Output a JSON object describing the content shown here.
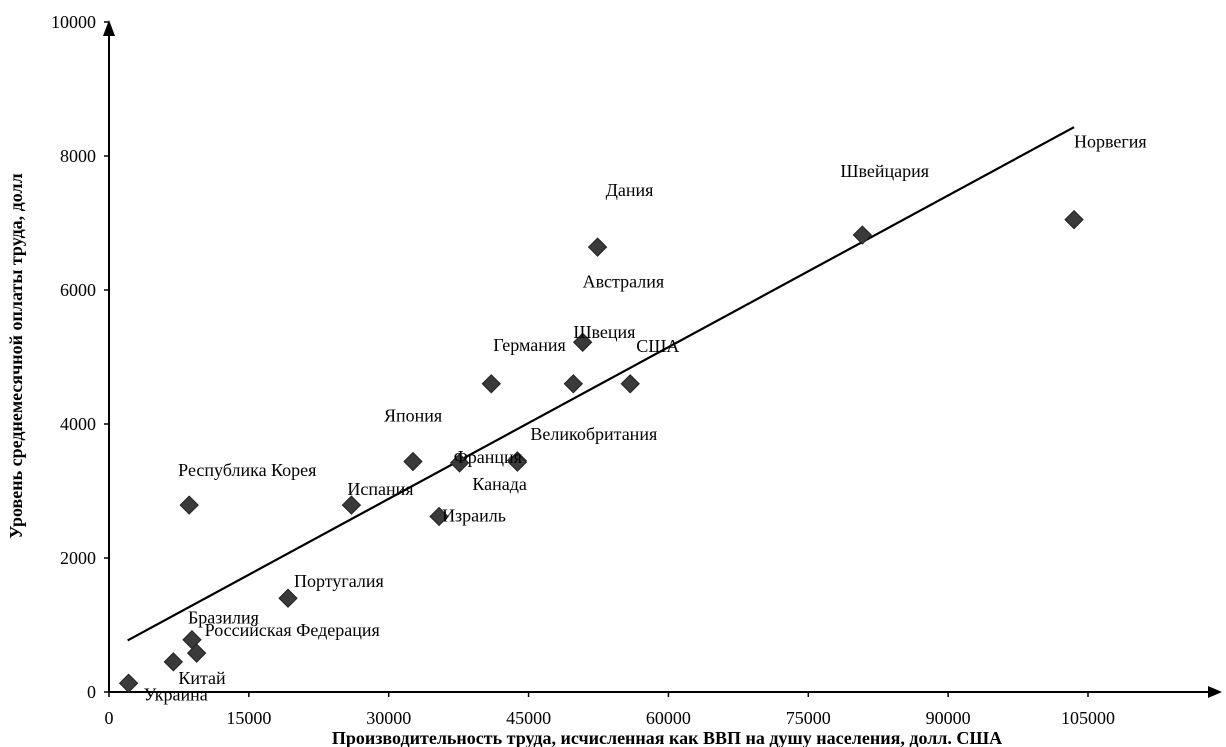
{
  "chart_data": {
    "type": "scatter",
    "xlabel": "Производительность труда, исчисленная как ВВП на душу населения, долл. США",
    "ylabel": "Уровень среднемесячной оплаты труда, долл",
    "xlim": [
      0,
      120000
    ],
    "ylim": [
      0,
      10000
    ],
    "x_ticks": [
      "0",
      "15000",
      "30000",
      "45000",
      "60000",
      "75000",
      "90000",
      "105000"
    ],
    "y_ticks": [
      "0",
      "2000",
      "4000",
      "6000",
      "8000",
      "10000"
    ],
    "grid": false,
    "legend": "none",
    "marker_color": "#3a3a3a",
    "points": [
      {
        "label": "Норвегия",
        "x": 103500,
        "y": 7050
      },
      {
        "label": "Швейцария",
        "x": 80800,
        "y": 6820
      },
      {
        "label": "Дания",
        "x": 52400,
        "y": 6640
      },
      {
        "label": "Австралия",
        "x": 50800,
        "y": 5220
      },
      {
        "label": "Швеция",
        "x": 49800,
        "y": 4600
      },
      {
        "label": "США",
        "x": 55900,
        "y": 4600
      },
      {
        "label": "Германия",
        "x": 41000,
        "y": 4600
      },
      {
        "label": "Канада",
        "x": 43800,
        "y": 3450
      },
      {
        "label": "Великобритания",
        "x": 43800,
        "y": 3430
      },
      {
        "label": "Япония",
        "x": 32600,
        "y": 3440
      },
      {
        "label": "Франция",
        "x": 37600,
        "y": 3420
      },
      {
        "label": "Израиль",
        "x": 35400,
        "y": 2620
      },
      {
        "label": "Испания",
        "x": 26000,
        "y": 2790
      },
      {
        "label": "Республика Корея",
        "x": 8600,
        "y": 2790
      },
      {
        "label": "Португалия",
        "x": 19200,
        "y": 1400
      },
      {
        "label": "Бразилия",
        "x": 8900,
        "y": 780
      },
      {
        "label": "Российская Федерация",
        "x": 9400,
        "y": 580
      },
      {
        "label": "Китай",
        "x": 6900,
        "y": 450
      },
      {
        "label": "Украина",
        "x": 2100,
        "y": 130
      }
    ],
    "trendline": {
      "x": [
        2000,
        103500
      ],
      "y": [
        770,
        8430
      ]
    }
  }
}
